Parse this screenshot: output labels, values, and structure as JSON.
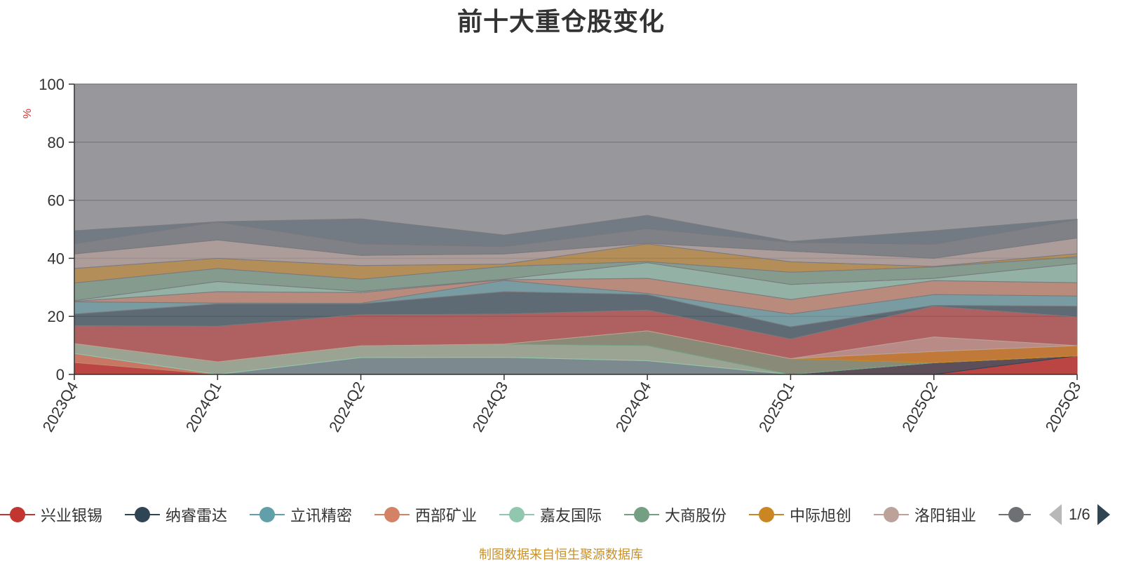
{
  "chart_data": {
    "type": "area",
    "title": "前十大重仓股变化",
    "ylabel": "%",
    "xlabel": "",
    "ylim": [
      0,
      100
    ],
    "yticks": [
      0,
      20,
      40,
      60,
      80,
      100
    ],
    "grid": true,
    "legend_position": "bottom",
    "categories": [
      "2023Q4",
      "2024Q1",
      "2024Q2",
      "2024Q3",
      "2024Q4",
      "2025Q1",
      "2025Q2",
      "2025Q3"
    ],
    "series": [
      {
        "name": "兴业银锡",
        "color": "#c23531",
        "values": [
          4.1,
          0.0,
          0.0,
          0.0,
          0.0,
          0.0,
          0.0,
          6.4
        ]
      },
      {
        "name": "纳睿雷达",
        "color": "#2f4554",
        "values": [
          0.0,
          0.0,
          0.0,
          0.0,
          0.0,
          0.0,
          4.0,
          0.0
        ]
      },
      {
        "name": "立讯精密",
        "color": "#61a0a8",
        "values": [
          0.0,
          0.0,
          5.8,
          5.9,
          4.7,
          0.0,
          0.0,
          0.0
        ]
      },
      {
        "name": "西部矿业",
        "color": "#d48265",
        "values": [
          3.1,
          0.0,
          0.0,
          0.0,
          0.0,
          0.0,
          0.0,
          0.0
        ]
      },
      {
        "name": "嘉友国际",
        "color": "#91c7ae",
        "values": [
          3.4,
          4.3,
          4.0,
          4.5,
          5.2,
          0.0,
          0.0,
          0.0
        ]
      },
      {
        "name": "大商股份",
        "color": "#749f83",
        "values": [
          0.0,
          0.0,
          0.0,
          0.0,
          5.1,
          5.4,
          0.0,
          0.0
        ]
      },
      {
        "name": "中际旭创",
        "color": "#ca8622",
        "values": [
          0.0,
          0.0,
          0.0,
          0.0,
          0.0,
          0.0,
          3.9,
          3.5
        ]
      },
      {
        "name": "洛阳钼业",
        "color": "#bda29a",
        "values": [
          0.0,
          0.0,
          0.0,
          0.0,
          0.0,
          0.0,
          5.0,
          0.0
        ]
      }
    ],
    "pager": "1/6",
    "source_note": "制图数据来自恒生聚源数据库"
  }
}
